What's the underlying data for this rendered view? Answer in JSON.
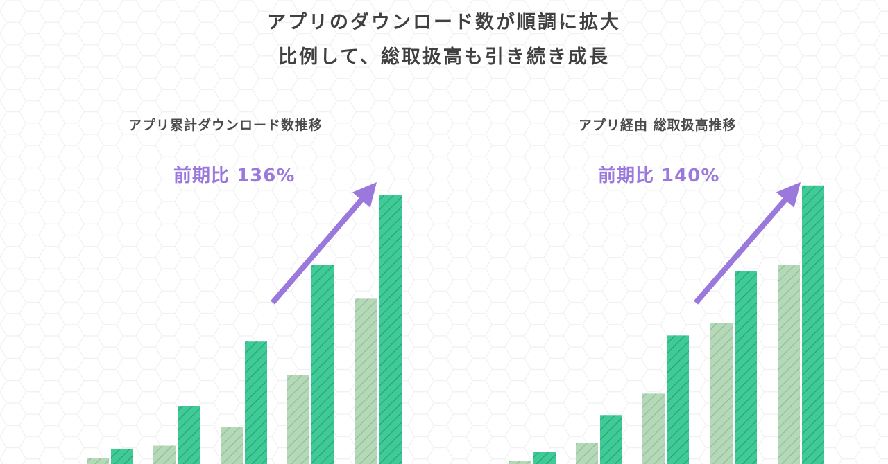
{
  "headline": {
    "line1": "アプリのダウンロード数が順調に拡大",
    "line2": "比例して、総取扱高も引き続き成長"
  },
  "colors": {
    "prior_bar": "#b5d9b8",
    "current_bar": "#3ecb97",
    "hatch": "#2a8f6a",
    "arrow": "#9b78dc",
    "growth_text": "#9b78dc"
  },
  "chart_data": [
    {
      "type": "bar",
      "title": "アプリ累計ダウンロード数推移",
      "growth_label": "前期比 136%",
      "ylim": [
        0,
        100
      ],
      "series": [
        {
          "values": [
            2,
            6,
            12,
            29,
            54
          ]
        },
        {
          "values": [
            5,
            19,
            40,
            65,
            88
          ]
        }
      ],
      "trend_arrow": true
    },
    {
      "type": "bar",
      "title": "アプリ経由 総取扱高推移",
      "growth_label": "前期比 140%",
      "ylim": [
        0,
        100
      ],
      "series": [
        {
          "values": [
            1,
            7,
            23,
            46,
            65
          ]
        },
        {
          "values": [
            4,
            16,
            42,
            63,
            91
          ]
        }
      ],
      "trend_arrow": true
    }
  ]
}
